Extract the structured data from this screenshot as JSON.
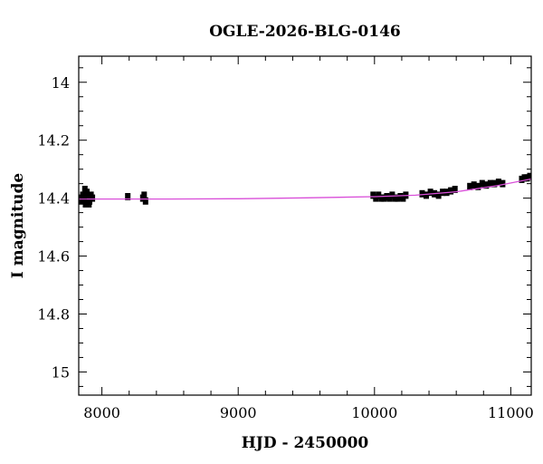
{
  "chart_data": {
    "type": "scatter",
    "title": "OGLE-2026-BLG-0146",
    "xlabel": "HJD - 2450000",
    "ylabel": "I magnitude",
    "xlim": [
      7830,
      11150
    ],
    "ylim": [
      15.08,
      13.91
    ],
    "y_inverted": true,
    "x_ticks": [
      8000,
      9000,
      10000,
      11000
    ],
    "y_ticks": [
      14,
      14.2,
      14.4,
      14.6,
      14.8,
      15
    ],
    "y_tick_labels": [
      "14",
      "14.2",
      "14.4",
      "14.6",
      "14.8",
      "15"
    ],
    "x_minor_step": 200,
    "y_minor_step": 0.05,
    "grid": false,
    "marker_color": "#000000",
    "series": [
      {
        "kind": "points",
        "points": [
          [
            7840,
            14.4
          ],
          [
            7850,
            14.41
          ],
          [
            7860,
            14.39
          ],
          [
            7870,
            14.4
          ],
          [
            7880,
            14.42
          ],
          [
            7890,
            14.38
          ],
          [
            7900,
            14.4
          ],
          [
            7910,
            14.41
          ],
          [
            7920,
            14.39
          ],
          [
            7930,
            14.4
          ],
          [
            7875,
            14.37
          ],
          [
            7905,
            14.42
          ],
          [
            8190,
            14.395
          ],
          [
            8300,
            14.4
          ],
          [
            8310,
            14.39
          ],
          [
            8320,
            14.41
          ],
          [
            9990,
            14.39
          ],
          [
            10010,
            14.4
          ],
          [
            10030,
            14.39
          ],
          [
            10050,
            14.4
          ],
          [
            10070,
            14.4
          ],
          [
            10090,
            14.395
          ],
          [
            10110,
            14.4
          ],
          [
            10130,
            14.39
          ],
          [
            10150,
            14.4
          ],
          [
            10170,
            14.4
          ],
          [
            10190,
            14.395
          ],
          [
            10210,
            14.4
          ],
          [
            10230,
            14.39
          ],
          [
            10350,
            14.385
          ],
          [
            10380,
            14.39
          ],
          [
            10410,
            14.38
          ],
          [
            10440,
            14.385
          ],
          [
            10470,
            14.39
          ],
          [
            10500,
            14.38
          ],
          [
            10530,
            14.38
          ],
          [
            10560,
            14.375
          ],
          [
            10590,
            14.37
          ],
          [
            10700,
            14.36
          ],
          [
            10730,
            14.355
          ],
          [
            10760,
            14.36
          ],
          [
            10790,
            14.35
          ],
          [
            10820,
            14.355
          ],
          [
            10850,
            14.35
          ],
          [
            10880,
            14.35
          ],
          [
            10910,
            14.345
          ],
          [
            10940,
            14.35
          ],
          [
            11080,
            14.335
          ],
          [
            11100,
            14.33
          ],
          [
            11120,
            14.33
          ],
          [
            11140,
            14.325
          ]
        ]
      },
      {
        "kind": "model",
        "color": "#d94fd9",
        "points": [
          [
            7830,
            14.403
          ],
          [
            8500,
            14.403
          ],
          [
            9000,
            14.402
          ],
          [
            9500,
            14.399
          ],
          [
            10000,
            14.395
          ],
          [
            10300,
            14.39
          ],
          [
            10600,
            14.378
          ],
          [
            10900,
            14.357
          ],
          [
            11150,
            14.334
          ]
        ]
      }
    ]
  }
}
